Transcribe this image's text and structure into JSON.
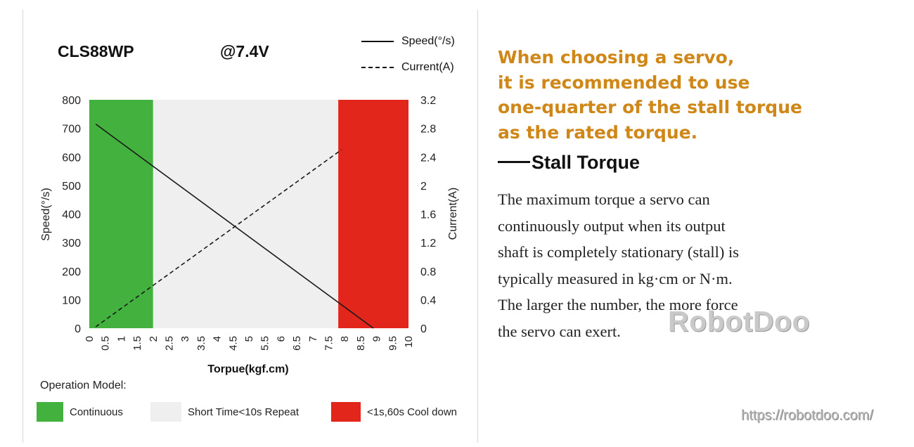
{
  "header": {
    "model": "CLS88WP",
    "voltage": "@7.4V"
  },
  "legend": {
    "speed": "Speed(°/s)",
    "current": "Current(A)"
  },
  "chart_data": {
    "type": "line",
    "title": "CLS88WP @7.4V",
    "xlabel": "Torpue(kgf.cm)",
    "ylabel": "Speed(°/s)",
    "y2label": "Current(A)",
    "xlim": [
      0,
      10
    ],
    "ylim": [
      0,
      800
    ],
    "y2lim": [
      0,
      3.2
    ],
    "x_ticks": [
      "0",
      "0.5",
      "1",
      "1.5",
      "2",
      "2.5",
      "3",
      "3.5",
      "4",
      "4.5",
      "5",
      "5.5",
      "6",
      "6.5",
      "7",
      "7.5",
      "8",
      "8.5",
      "9",
      "9.5",
      "10"
    ],
    "y_ticks": [
      "0",
      "100",
      "200",
      "300",
      "400",
      "500",
      "600",
      "700",
      "800"
    ],
    "y2_ticks": [
      "0",
      "0.4",
      "0.8",
      "1.2",
      "1.6",
      "2",
      "2.4",
      "2.8",
      "3.2"
    ],
    "regions": [
      {
        "label": "Continuous",
        "from": 0,
        "to": 2,
        "color": "#43b13e"
      },
      {
        "label": "Short Time<10s Repeat",
        "from": 2,
        "to": 7.8,
        "color": "#efefef"
      },
      {
        "label": "<1s,60s Cool down",
        "from": 7.8,
        "to": 10,
        "color": "#e3261c"
      }
    ],
    "series": [
      {
        "name": "Speed(°/s)",
        "axis": "left",
        "style": "solid",
        "x": [
          0.2,
          8.9
        ],
        "y": [
          715,
          0
        ]
      },
      {
        "name": "Current(A)",
        "axis": "right",
        "style": "dashed",
        "x": [
          0.2,
          7.9
        ],
        "y": [
          0.02,
          2.5
        ]
      }
    ]
  },
  "operation": {
    "title": "Operation Model:",
    "items": [
      {
        "label": "Continuous",
        "color": "#43b13e"
      },
      {
        "label": "Short Time<10s Repeat",
        "color": "#efefef"
      },
      {
        "label": "<1s,60s Cool down",
        "color": "#e3261c"
      }
    ]
  },
  "recommendation": {
    "lines": [
      "When choosing a servo,",
      "it is recommended to use",
      "one-quarter of the stall torque",
      "as the rated torque."
    ]
  },
  "stall": {
    "heading": "Stall Torque",
    "lines": [
      "The maximum torque a servo can",
      "continuously output when its output",
      "shaft is completely stationary (stall) is",
      "typically measured in kg·cm or N·m.",
      "The larger the number, the more force",
      "the servo can exert."
    ]
  },
  "watermark": "RobotDoo",
  "url": "https://robotdoo.com/"
}
